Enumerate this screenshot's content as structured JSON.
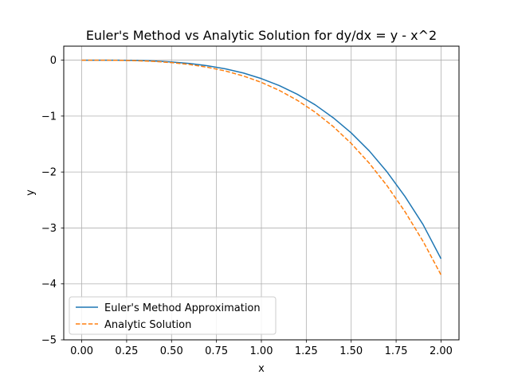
{
  "chart_data": {
    "type": "line",
    "title": "Euler's Method vs Analytic Solution for dy/dx = y - x^2",
    "xlabel": "x",
    "ylabel": "y",
    "xlim": [
      -0.1,
      2.1
    ],
    "ylim": [
      -5.0,
      0.25
    ],
    "grid": true,
    "legend_position": "lower-left",
    "x_ticks": [
      0.0,
      0.25,
      0.5,
      0.75,
      1.0,
      1.25,
      1.5,
      1.75,
      2.0
    ],
    "x_tick_labels": [
      "0.00",
      "0.25",
      "0.50",
      "0.75",
      "1.00",
      "1.25",
      "1.50",
      "1.75",
      "2.00"
    ],
    "y_ticks": [
      0,
      -1,
      -2,
      -3,
      -4,
      -5
    ],
    "y_tick_labels": [
      "0",
      "−1",
      "−2",
      "−3",
      "−4",
      "−5"
    ],
    "x": [
      0.0,
      0.1,
      0.2,
      0.3,
      0.4,
      0.5,
      0.6,
      0.7,
      0.8,
      0.9,
      1.0,
      1.1,
      1.2,
      1.3,
      1.4,
      1.5,
      1.6,
      1.7,
      1.8,
      1.9,
      2.0
    ],
    "series": [
      {
        "name": "Euler's Method Approximation",
        "color": "#1f77b4",
        "style": "solid",
        "values": [
          0.0,
          0.0,
          -0.001,
          -0.005,
          -0.015,
          -0.032,
          -0.06,
          -0.1,
          -0.155,
          -0.23,
          -0.33,
          -0.455,
          -0.61,
          -0.8,
          -1.03,
          -1.3,
          -1.62,
          -2.0,
          -2.44,
          -2.94,
          -3.55
        ]
      },
      {
        "name": "Analytic Solution",
        "color": "#ff7f0e",
        "style": "dashed",
        "values": [
          0.0,
          0.0,
          -0.003,
          -0.009,
          -0.022,
          -0.044,
          -0.078,
          -0.127,
          -0.194,
          -0.283,
          -0.397,
          -0.541,
          -0.718,
          -0.932,
          -1.187,
          -1.489,
          -1.84,
          -2.247,
          -2.712,
          -3.239,
          -3.839
        ]
      }
    ]
  }
}
